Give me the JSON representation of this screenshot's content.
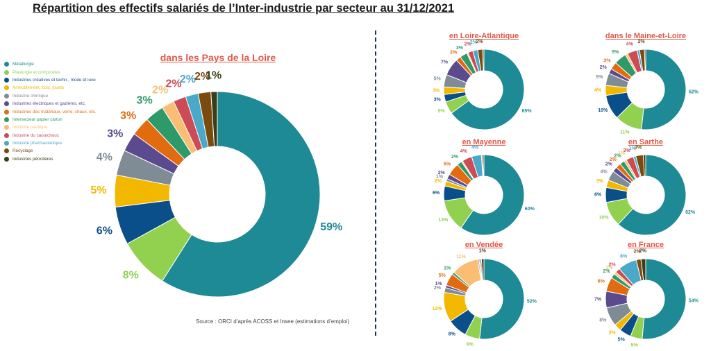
{
  "title": "Répartition des effectifs salariés de l’Inter-industrie par secteur au 31/12/2021",
  "source": "Source : ORCI d’après ACOSS et Insee (estimations d’emploi)",
  "legend": [
    {
      "label": "Métallurgie",
      "color": "#1d8a96"
    },
    {
      "label": "Plasturgie et composites",
      "color": "#92d050"
    },
    {
      "label": "Industries créatives et techn., mode et luxe",
      "color": "#0b4f8a"
    },
    {
      "label": "Ameublement, bois, jouets",
      "color": "#f2b800"
    },
    {
      "label": "Industrie chimique",
      "color": "#7f8c95"
    },
    {
      "label": "Industries électriques et gazières, etc.",
      "color": "#5c4a8e"
    },
    {
      "label": "Industries des matériaux, verre, chaux, etc.",
      "color": "#e26b10"
    },
    {
      "label": "Intersecteur papier carton",
      "color": "#2e9a6a"
    },
    {
      "label": "Industrie nautique",
      "color": "#f9be73"
    },
    {
      "label": "Industrie du caoutchouc",
      "color": "#cc4b55"
    },
    {
      "label": "Industrie pharmaceutique",
      "color": "#4aa8c9"
    },
    {
      "label": "Recyclage",
      "color": "#7a4b0f"
    },
    {
      "label": "Industries pétrolières",
      "color": "#3b3f19"
    }
  ],
  "chart_data": [
    {
      "type": "pie",
      "title": "dans les Pays de la Loire",
      "values": [
        59,
        8,
        6,
        5,
        4,
        3,
        3,
        3,
        2,
        2,
        2,
        2,
        1
      ],
      "labels": [
        "59%",
        "8%",
        "6%",
        "5%",
        "4%",
        "3%",
        "3%",
        "3%",
        "2%",
        "2%",
        "2%",
        "2%",
        "1%"
      ]
    },
    {
      "type": "pie",
      "title": "en Loire-Atlantique",
      "values": [
        65,
        5,
        3,
        3,
        5,
        7,
        2,
        3,
        0.5,
        2,
        2,
        2,
        0.5
      ],
      "labels": [
        "65%",
        "5%",
        "3%",
        "3%",
        "5%",
        "7%",
        "2%",
        "3%",
        "",
        "2%",
        "2%",
        "2%",
        ""
      ]
    },
    {
      "type": "pie",
      "title": "dans le Maine-et-Loire",
      "values": [
        52,
        11,
        10,
        4,
        5,
        2,
        3,
        5,
        1,
        4,
        1,
        2,
        0.5
      ],
      "labels": [
        "52%",
        "11%",
        "10%",
        "4%",
        "5%",
        "2%",
        "3%",
        "5%",
        "",
        "4%",
        "",
        "2%",
        ""
      ]
    },
    {
      "type": "pie",
      "title": "en Mayenne",
      "values": [
        60,
        13,
        6,
        2,
        1,
        2,
        5,
        2,
        0.5,
        4,
        4,
        0.5,
        0.5
      ],
      "labels": [
        "60%",
        "13%",
        "6%",
        "2%",
        "1%",
        "2%",
        "5%",
        "2%",
        "",
        "4%",
        "4%",
        "",
        ""
      ]
    },
    {
      "type": "pie",
      "title": "en Sarthe",
      "values": [
        62,
        10,
        6,
        3,
        4,
        2,
        2,
        2,
        1,
        3,
        1,
        3,
        1
      ],
      "labels": [
        "62%",
        "10%",
        "6%",
        "3%",
        "4%",
        "2%",
        "2%",
        "2%",
        "1%",
        "3%",
        "1%",
        "3%",
        ""
      ]
    },
    {
      "type": "pie",
      "title": "en Vendée",
      "values": [
        52,
        6,
        8,
        12,
        2,
        1,
        5,
        1,
        11,
        0.5,
        0.5,
        0.5,
        1
      ],
      "labels": [
        "52%",
        "6%",
        "8%",
        "12%",
        "2%",
        "1%",
        "5%",
        "1%",
        "11%",
        "",
        "",
        "",
        "1%"
      ]
    },
    {
      "type": "pie",
      "title": "en France",
      "values": [
        54,
        5,
        5,
        3,
        8,
        7,
        6,
        2,
        1,
        2,
        8,
        2,
        2
      ],
      "labels": [
        "54%",
        "5%",
        "5%",
        "3%",
        "8%",
        "7%",
        "6%",
        "2%",
        "1%",
        "2%",
        "8%",
        "2%",
        "2%"
      ]
    }
  ]
}
